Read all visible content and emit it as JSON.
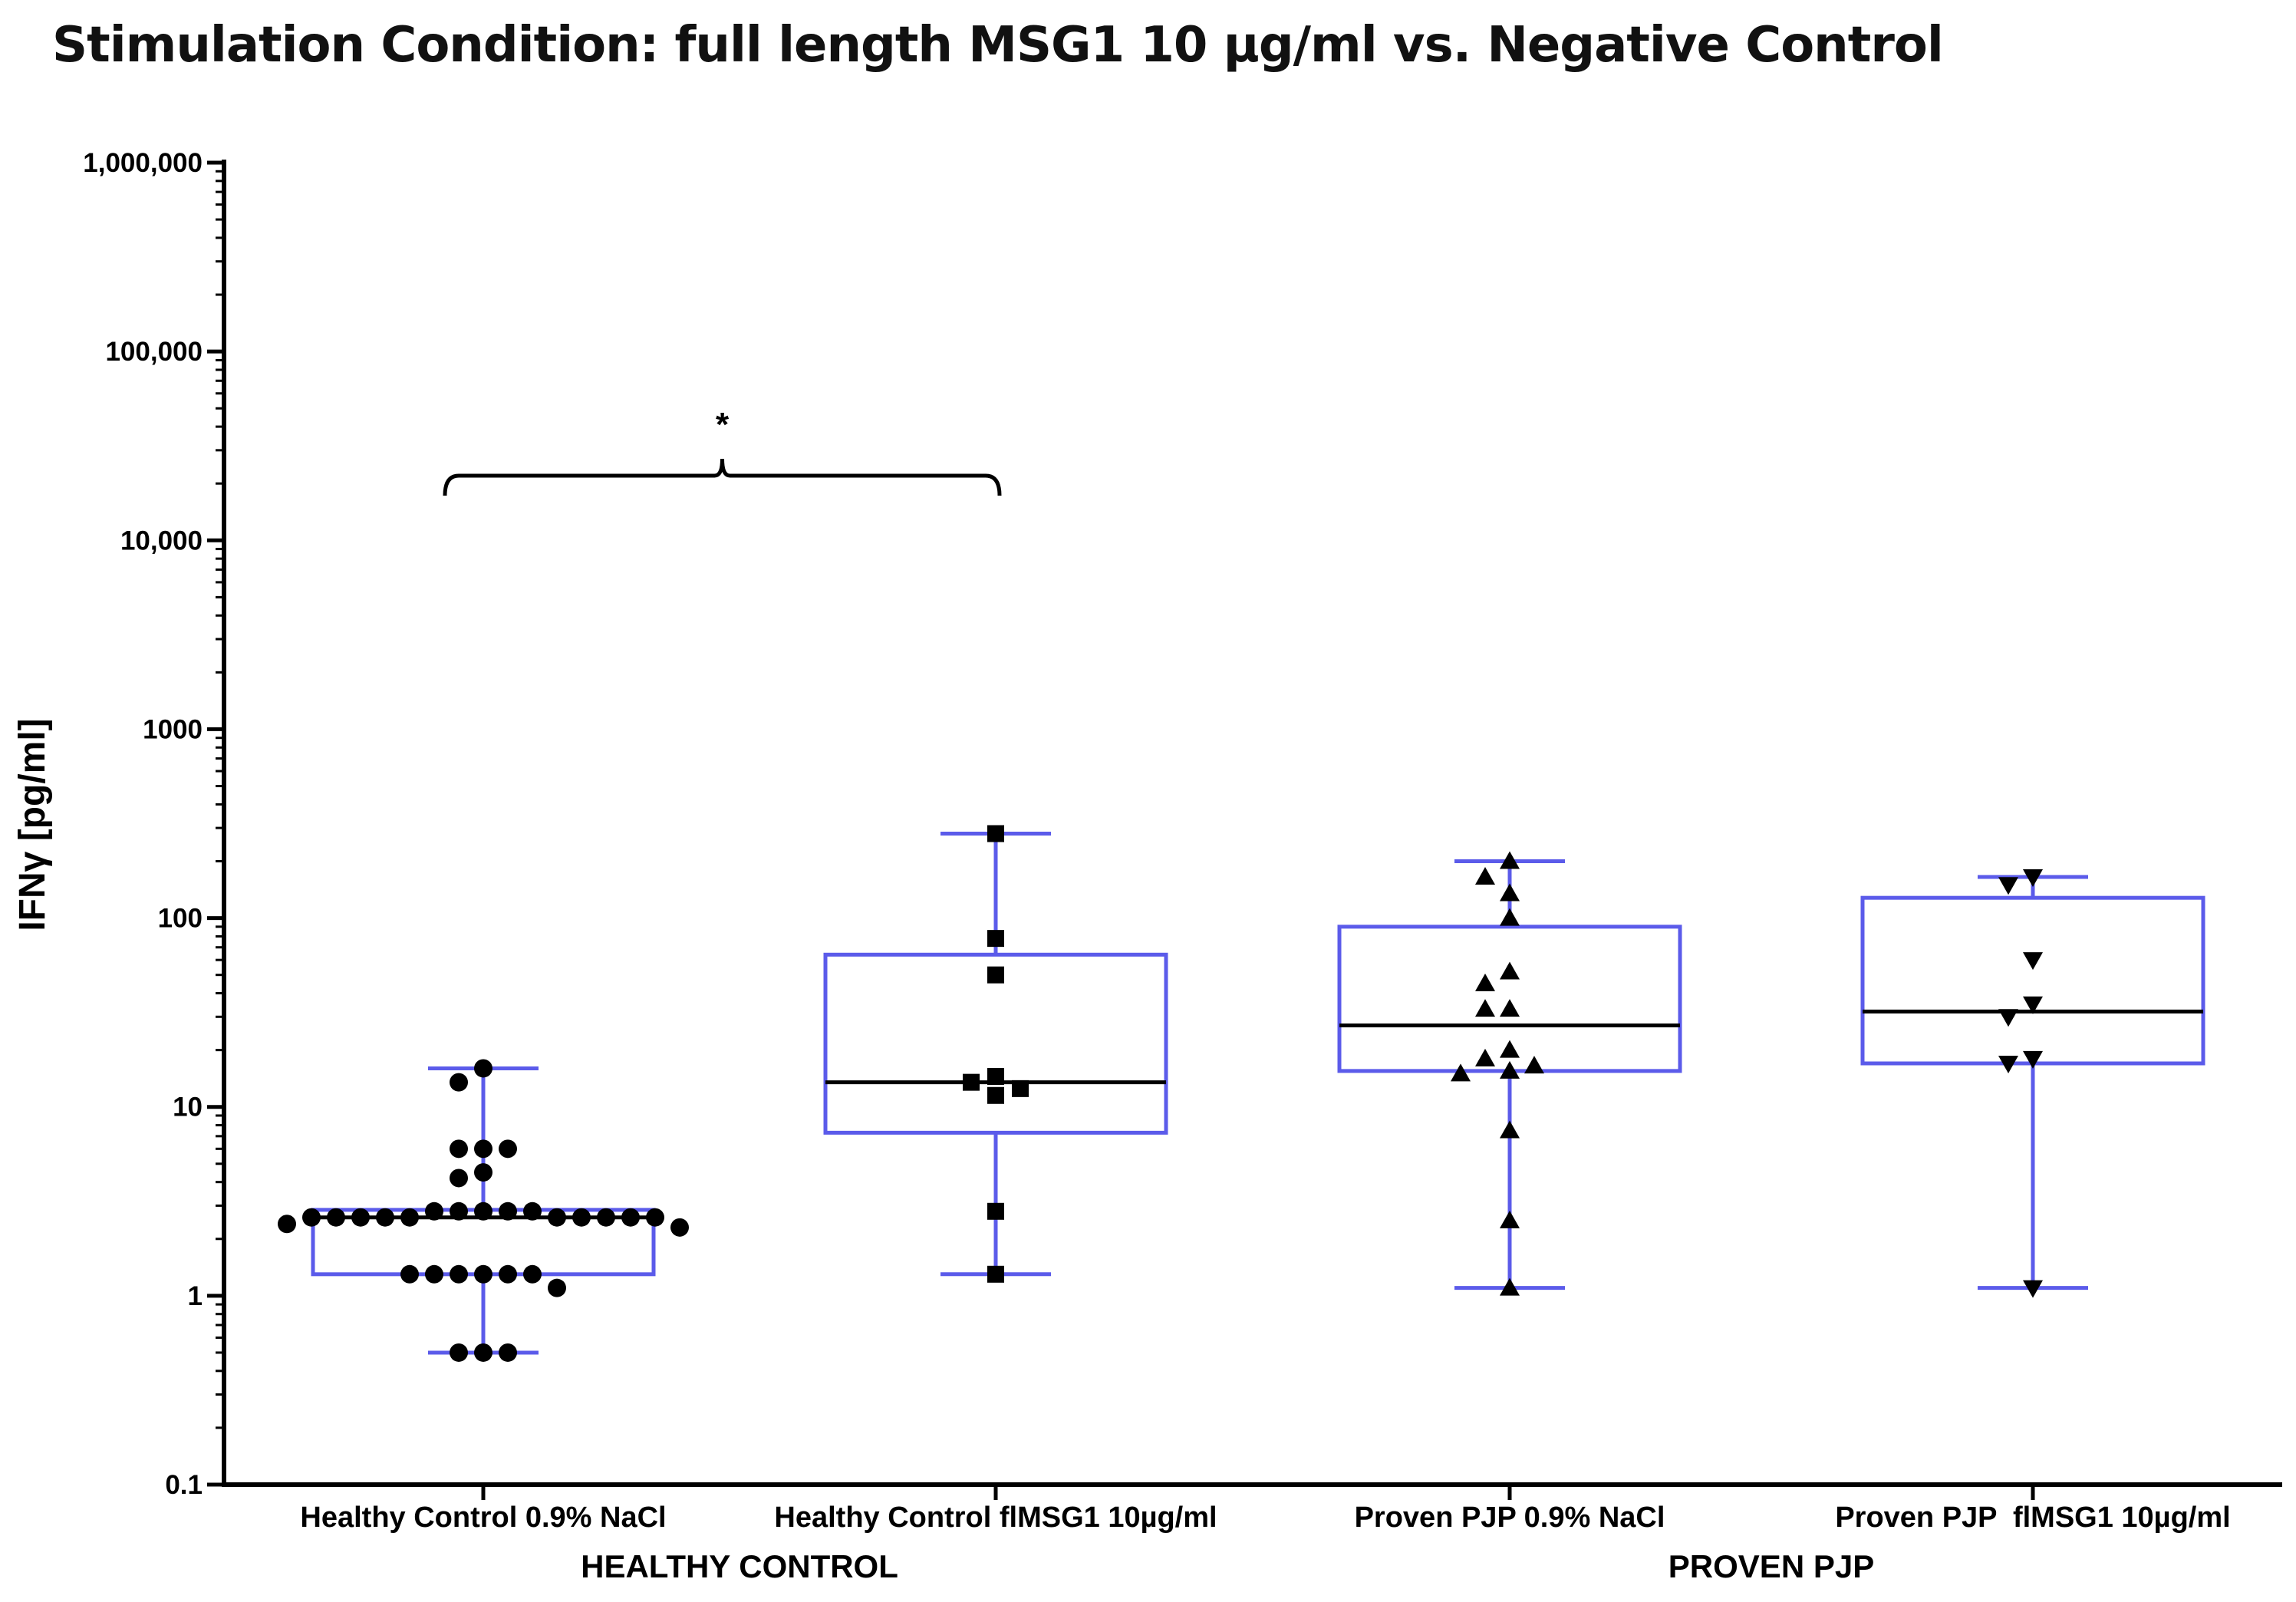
{
  "title": "Stimulation Condition: full length MSG1 10 µg/ml vs. Negative Control",
  "chart_data": {
    "type": "box",
    "title": "Stimulation Condition: full length MSG1 10 µg/ml vs. Negative Control",
    "ylabel": "IFNγ [pg/ml]",
    "yscale": "log",
    "ylim": [
      0.1,
      1000000
    ],
    "yticks": [
      0.1,
      1,
      10,
      100,
      1000,
      10000,
      100000,
      1000000
    ],
    "ytick_labels": [
      "0.1",
      "1",
      "10",
      "100",
      "1000",
      "10,000",
      "100,000",
      "1,000,000"
    ],
    "box_color": "#5b5bea",
    "categories": [
      "Healthy Control 0.9% NaCl",
      "Healthy Control flMSG1 10µg/ml",
      "Proven PJP 0.9% NaCl",
      "Proven PJP  flMSG1 10µg/ml"
    ],
    "groups": [
      {
        "label": "HEALTHY CONTROL",
        "categories": [
          0,
          1
        ]
      },
      {
        "label": "PROVEN PJP",
        "categories": [
          2,
          3
        ]
      }
    ],
    "series": [
      {
        "marker": "circle",
        "whisker_low": 0.5,
        "q1": 1.3,
        "median": 2.6,
        "q3": 2.85,
        "whisker_high": 16,
        "points": [
          16,
          13.5,
          6,
          6,
          6,
          4.5,
          4.2,
          2.8,
          2.8,
          2.8,
          2.8,
          2.8,
          2.6,
          2.6,
          2.6,
          2.6,
          2.6,
          2.6,
          2.6,
          2.6,
          2.6,
          2.6,
          2.4,
          2.3,
          1.3,
          1.3,
          1.3,
          1.3,
          1.3,
          1.3,
          1.1,
          0.5,
          0.5,
          0.5
        ]
      },
      {
        "marker": "square",
        "whisker_low": 1.3,
        "q1": 7.3,
        "median": 13.5,
        "q3": 64,
        "whisker_high": 280,
        "points": [
          280,
          78,
          50,
          14.5,
          13.5,
          12.5,
          11.5,
          2.8,
          1.3
        ]
      },
      {
        "marker": "triangle-up",
        "whisker_low": 1.1,
        "q1": 15.5,
        "median": 27,
        "q3": 90,
        "whisker_high": 200,
        "points": [
          200,
          165,
          135,
          100,
          52,
          45,
          33,
          33,
          20,
          18,
          16.5,
          15.5,
          15,
          7.5,
          2.5,
          1.1
        ]
      },
      {
        "marker": "triangle-down",
        "whisker_low": 1.1,
        "q1": 17,
        "median": 32,
        "q3": 128,
        "whisker_high": 165,
        "points": [
          165,
          150,
          60,
          35,
          30,
          18,
          17,
          1.1
        ]
      }
    ],
    "annotations": [
      {
        "text": "*",
        "type": "significance-bracket",
        "from_category": 0,
        "to_category": 1,
        "y": 22000
      }
    ]
  }
}
